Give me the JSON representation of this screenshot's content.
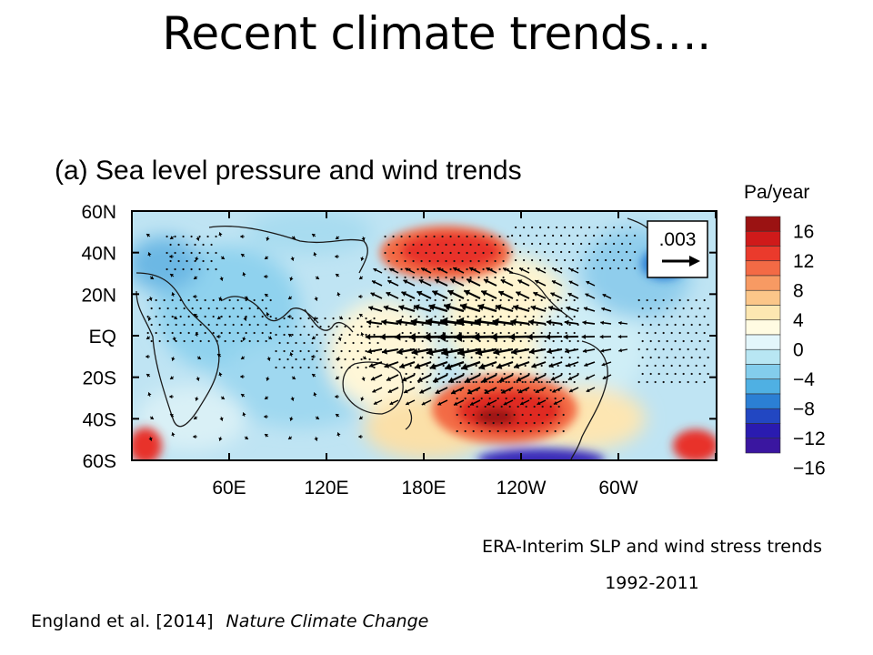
{
  "slide": {
    "title": "Recent climate trends….",
    "caption_line1": "ERA-Interim SLP and wind stress trends",
    "caption_line2": "1992-2011",
    "citation_authors": "England et al. [2014]",
    "citation_journal": "Nature Climate Change"
  },
  "figure": {
    "panel_title": "(a) Sea level pressure and wind trends",
    "y_ticks": [
      "60N",
      "40N",
      "20N",
      "EQ",
      "20S",
      "40S",
      "60S"
    ],
    "x_ticks": [
      "60E",
      "120E",
      "180E",
      "120W",
      "60W"
    ],
    "vector_reference": ".003",
    "colorbar_unit": "Pa/year",
    "colorbar_labels": [
      "16",
      "12",
      "8",
      "4",
      "0",
      "−4",
      "−8",
      "−12",
      "−16"
    ],
    "colorbar_colors": [
      "#9b1212",
      "#cf1a1a",
      "#ea3a2c",
      "#f36a45",
      "#f79a63",
      "#fbc689",
      "#fde7b1",
      "#fffbe2",
      "#e3f6fb",
      "#b8e6f3",
      "#83cdec",
      "#4fb0e3",
      "#2b7fd4",
      "#2247c2",
      "#2a1bb0",
      "#3a16a0"
    ]
  }
}
